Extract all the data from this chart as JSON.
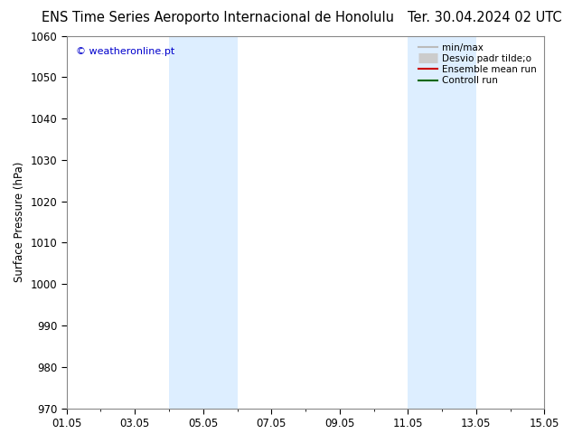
{
  "title": "ENS Time Series Aeroporto Internacional de Honolulu",
  "title_right": "Ter. 30.04.2024 02 UTC",
  "ylabel": "Surface Pressure (hPa)",
  "watermark": "© weatheronline.pt",
  "ylim": [
    970,
    1060
  ],
  "yticks": [
    970,
    980,
    990,
    1000,
    1010,
    1020,
    1030,
    1040,
    1050,
    1060
  ],
  "xtick_labels": [
    "01.05",
    "03.05",
    "05.05",
    "07.05",
    "09.05",
    "11.05",
    "13.05",
    "15.05"
  ],
  "xtick_positions": [
    0,
    2,
    4,
    6,
    8,
    10,
    12,
    14
  ],
  "shaded_bands": [
    {
      "x_start": 3,
      "x_end": 4
    },
    {
      "x_start": 4,
      "x_end": 5
    },
    {
      "x_start": 10,
      "x_end": 11
    },
    {
      "x_start": 11,
      "x_end": 12
    }
  ],
  "shade_color": "#ddeeff",
  "shade_alpha": 1.0,
  "legend_entries": [
    {
      "label": "min/max",
      "color": "#bbbbbb",
      "lw": 1.5,
      "style": "line"
    },
    {
      "label": "Desvio padr tilde;o",
      "color": "#cccccc",
      "lw": 8,
      "style": "band"
    },
    {
      "label": "Ensemble mean run",
      "color": "#cc0000",
      "lw": 1.5,
      "style": "line"
    },
    {
      "label": "Controll run",
      "color": "#006600",
      "lw": 1.5,
      "style": "line"
    }
  ],
  "bg_color": "#ffffff",
  "plot_bg_color": "#ffffff",
  "spine_color": "#888888",
  "title_fontsize": 10.5,
  "axis_fontsize": 8.5,
  "tick_fontsize": 8.5,
  "legend_fontsize": 7.5
}
